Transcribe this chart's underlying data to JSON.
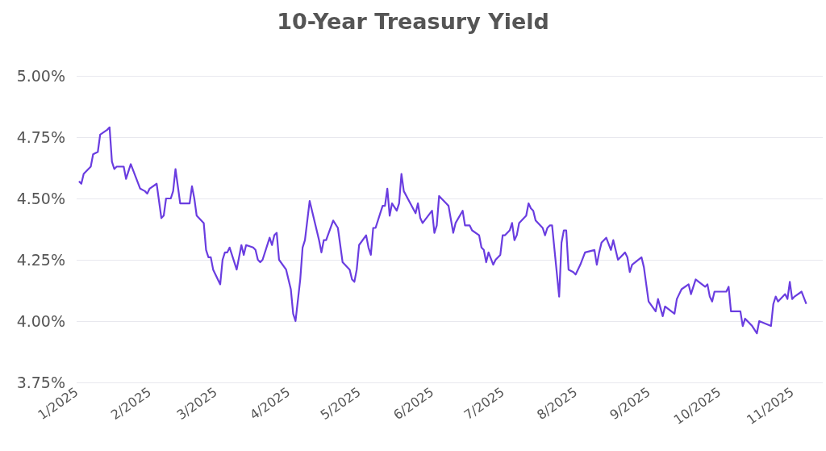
{
  "chart_data": {
    "type": "line",
    "title": "10-Year Treasury Yield",
    "x": [
      "2025-01-02",
      "2025-01-03",
      "2025-01-04",
      "2025-01-07",
      "2025-01-08",
      "2025-01-10",
      "2025-01-11",
      "2025-01-14",
      "2025-01-15",
      "2025-01-16",
      "2025-01-17",
      "2025-01-18",
      "2025-01-21",
      "2025-01-22",
      "2025-01-24",
      "2025-01-28",
      "2025-01-30",
      "2025-01-31",
      "2025-02-01",
      "2025-02-04",
      "2025-02-06",
      "2025-02-07",
      "2025-02-08",
      "2025-02-10",
      "2025-02-11",
      "2025-02-12",
      "2025-02-14",
      "2025-02-18",
      "2025-02-19",
      "2025-02-20",
      "2025-02-21",
      "2025-02-24",
      "2025-02-25",
      "2025-02-26",
      "2025-02-27",
      "2025-02-28",
      "2025-03-03",
      "2025-03-04",
      "2025-03-05",
      "2025-03-06",
      "2025-03-07",
      "2025-03-10",
      "2025-03-12",
      "2025-03-13",
      "2025-03-14",
      "2025-03-17",
      "2025-03-18",
      "2025-03-19",
      "2025-03-20",
      "2025-03-21",
      "2025-03-24",
      "2025-03-25",
      "2025-03-26",
      "2025-03-27",
      "2025-03-28",
      "2025-03-31",
      "2025-04-02",
      "2025-04-03",
      "2025-04-04",
      "2025-04-06",
      "2025-04-07",
      "2025-04-08",
      "2025-04-10",
      "2025-04-14",
      "2025-04-15",
      "2025-04-16",
      "2025-04-17",
      "2025-04-20",
      "2025-04-22",
      "2025-04-24",
      "2025-04-27",
      "2025-04-28",
      "2025-04-29",
      "2025-04-30",
      "2025-05-01",
      "2025-05-04",
      "2025-05-05",
      "2025-05-06",
      "2025-05-07",
      "2025-05-08",
      "2025-05-11",
      "2025-05-12",
      "2025-05-13",
      "2025-05-14",
      "2025-05-15",
      "2025-05-17",
      "2025-05-18",
      "2025-05-19",
      "2025-05-20",
      "2025-05-25",
      "2025-05-26",
      "2025-05-27",
      "2025-05-28",
      "2025-06-01",
      "2025-06-02",
      "2025-06-03",
      "2025-06-04",
      "2025-06-07",
      "2025-06-08",
      "2025-06-10",
      "2025-06-11",
      "2025-06-14",
      "2025-06-15",
      "2025-06-17",
      "2025-06-18",
      "2025-06-21",
      "2025-06-22",
      "2025-06-23",
      "2025-06-24",
      "2025-06-25",
      "2025-06-27",
      "2025-06-28",
      "2025-06-30",
      "2025-07-01",
      "2025-07-02",
      "2025-07-04",
      "2025-07-05",
      "2025-07-06",
      "2025-07-07",
      "2025-07-08",
      "2025-07-11",
      "2025-07-12",
      "2025-07-13",
      "2025-07-14",
      "2025-07-15",
      "2025-07-18",
      "2025-07-19",
      "2025-07-20",
      "2025-07-21",
      "2025-07-22",
      "2025-07-25",
      "2025-07-26",
      "2025-07-27",
      "2025-07-28",
      "2025-07-29",
      "2025-07-31",
      "2025-08-01",
      "2025-08-03",
      "2025-08-05",
      "2025-08-09",
      "2025-08-10",
      "2025-08-11",
      "2025-08-12",
      "2025-08-14",
      "2025-08-16",
      "2025-08-17",
      "2025-08-19",
      "2025-08-22",
      "2025-08-23",
      "2025-08-24",
      "2025-08-25",
      "2025-08-29",
      "2025-08-30",
      "2025-09-01",
      "2025-09-04",
      "2025-09-05",
      "2025-09-07",
      "2025-09-08",
      "2025-09-12",
      "2025-09-13",
      "2025-09-15",
      "2025-09-18",
      "2025-09-19",
      "2025-09-21",
      "2025-09-25",
      "2025-09-26",
      "2025-09-27",
      "2025-09-28",
      "2025-09-29",
      "2025-10-03",
      "2025-10-04",
      "2025-10-05",
      "2025-10-06",
      "2025-10-10",
      "2025-10-11",
      "2025-10-12",
      "2025-10-15",
      "2025-10-17",
      "2025-10-18",
      "2025-10-23",
      "2025-10-24",
      "2025-10-25",
      "2025-10-26",
      "2025-10-29",
      "2025-10-30",
      "2025-10-31",
      "2025-11-01",
      "2025-11-02",
      "2025-11-05",
      "2025-11-07"
    ],
    "series": [
      {
        "color": "#6a3de0",
        "values": [
          4.57,
          4.56,
          4.6,
          4.63,
          4.68,
          4.69,
          4.76,
          4.78,
          4.79,
          4.65,
          4.62,
          4.63,
          4.63,
          4.58,
          4.64,
          4.54,
          4.53,
          4.52,
          4.54,
          4.56,
          4.42,
          4.43,
          4.5,
          4.5,
          4.53,
          4.62,
          4.48,
          4.48,
          4.55,
          4.5,
          4.43,
          4.4,
          4.29,
          4.26,
          4.26,
          4.21,
          4.15,
          4.25,
          4.28,
          4.28,
          4.3,
          4.21,
          4.31,
          4.27,
          4.31,
          4.3,
          4.29,
          4.25,
          4.24,
          4.25,
          4.34,
          4.31,
          4.35,
          4.36,
          4.25,
          4.21,
          4.13,
          4.03,
          4.0,
          4.17,
          4.3,
          4.33,
          4.49,
          4.33,
          4.28,
          4.33,
          4.33,
          4.41,
          4.38,
          4.24,
          4.21,
          4.17,
          4.16,
          4.21,
          4.31,
          4.35,
          4.3,
          4.27,
          4.38,
          4.38,
          4.47,
          4.47,
          4.54,
          4.43,
          4.48,
          4.45,
          4.48,
          4.6,
          4.53,
          4.44,
          4.48,
          4.42,
          4.4,
          4.45,
          4.36,
          4.39,
          4.51,
          4.48,
          4.47,
          4.36,
          4.4,
          4.45,
          4.39,
          4.39,
          4.37,
          4.35,
          4.3,
          4.29,
          4.24,
          4.28,
          4.23,
          4.25,
          4.27,
          4.35,
          4.35,
          4.37,
          4.4,
          4.33,
          4.35,
          4.4,
          4.43,
          4.48,
          4.46,
          4.45,
          4.41,
          4.38,
          4.35,
          4.38,
          4.39,
          4.39,
          4.1,
          4.32,
          4.37,
          4.37,
          4.21,
          4.2,
          4.19,
          4.23,
          4.28,
          4.29,
          4.23,
          4.28,
          4.32,
          4.34,
          4.29,
          4.33,
          4.25,
          4.28,
          4.26,
          4.2,
          4.23,
          4.26,
          4.22,
          4.08,
          4.04,
          4.09,
          4.02,
          4.06,
          4.03,
          4.09,
          4.13,
          4.15,
          4.11,
          4.17,
          4.14,
          4.15,
          4.1,
          4.08,
          4.12,
          4.12,
          4.12,
          4.14,
          4.04,
          4.04,
          3.98,
          4.01,
          3.98,
          3.95,
          4.0,
          3.98,
          4.07,
          4.1,
          4.08,
          4.11,
          4.09,
          4.16,
          4.09,
          4.1,
          4.12,
          4.07
        ]
      }
    ],
    "xlim": [
      "2025-01-01",
      "2025-11-14"
    ],
    "xticks": [
      {
        "value": "2025-01-01",
        "label": "1/2025"
      },
      {
        "value": "2025-02-01",
        "label": "2/2025"
      },
      {
        "value": "2025-03-01",
        "label": "3/2025"
      },
      {
        "value": "2025-04-01",
        "label": "4/2025"
      },
      {
        "value": "2025-05-01",
        "label": "5/2025"
      },
      {
        "value": "2025-06-01",
        "label": "6/2025"
      },
      {
        "value": "2025-07-01",
        "label": "7/2025"
      },
      {
        "value": "2025-08-01",
        "label": "8/2025"
      },
      {
        "value": "2025-09-01",
        "label": "9/2025"
      },
      {
        "value": "2025-10-01",
        "label": "10/2025"
      },
      {
        "value": "2025-11-01",
        "label": "11/2025"
      }
    ],
    "ylim": [
      3.75,
      5
    ],
    "yticks": [
      {
        "value": 3.75,
        "label": "3.75%"
      },
      {
        "value": 4,
        "label": "4.00%"
      },
      {
        "value": 4.25,
        "label": "4.25%"
      },
      {
        "value": 4.5,
        "label": "4.50%"
      },
      {
        "value": 4.75,
        "label": "4.75%"
      },
      {
        "value": 5,
        "label": "5.00%"
      }
    ],
    "grid": "y",
    "marker": "none"
  }
}
